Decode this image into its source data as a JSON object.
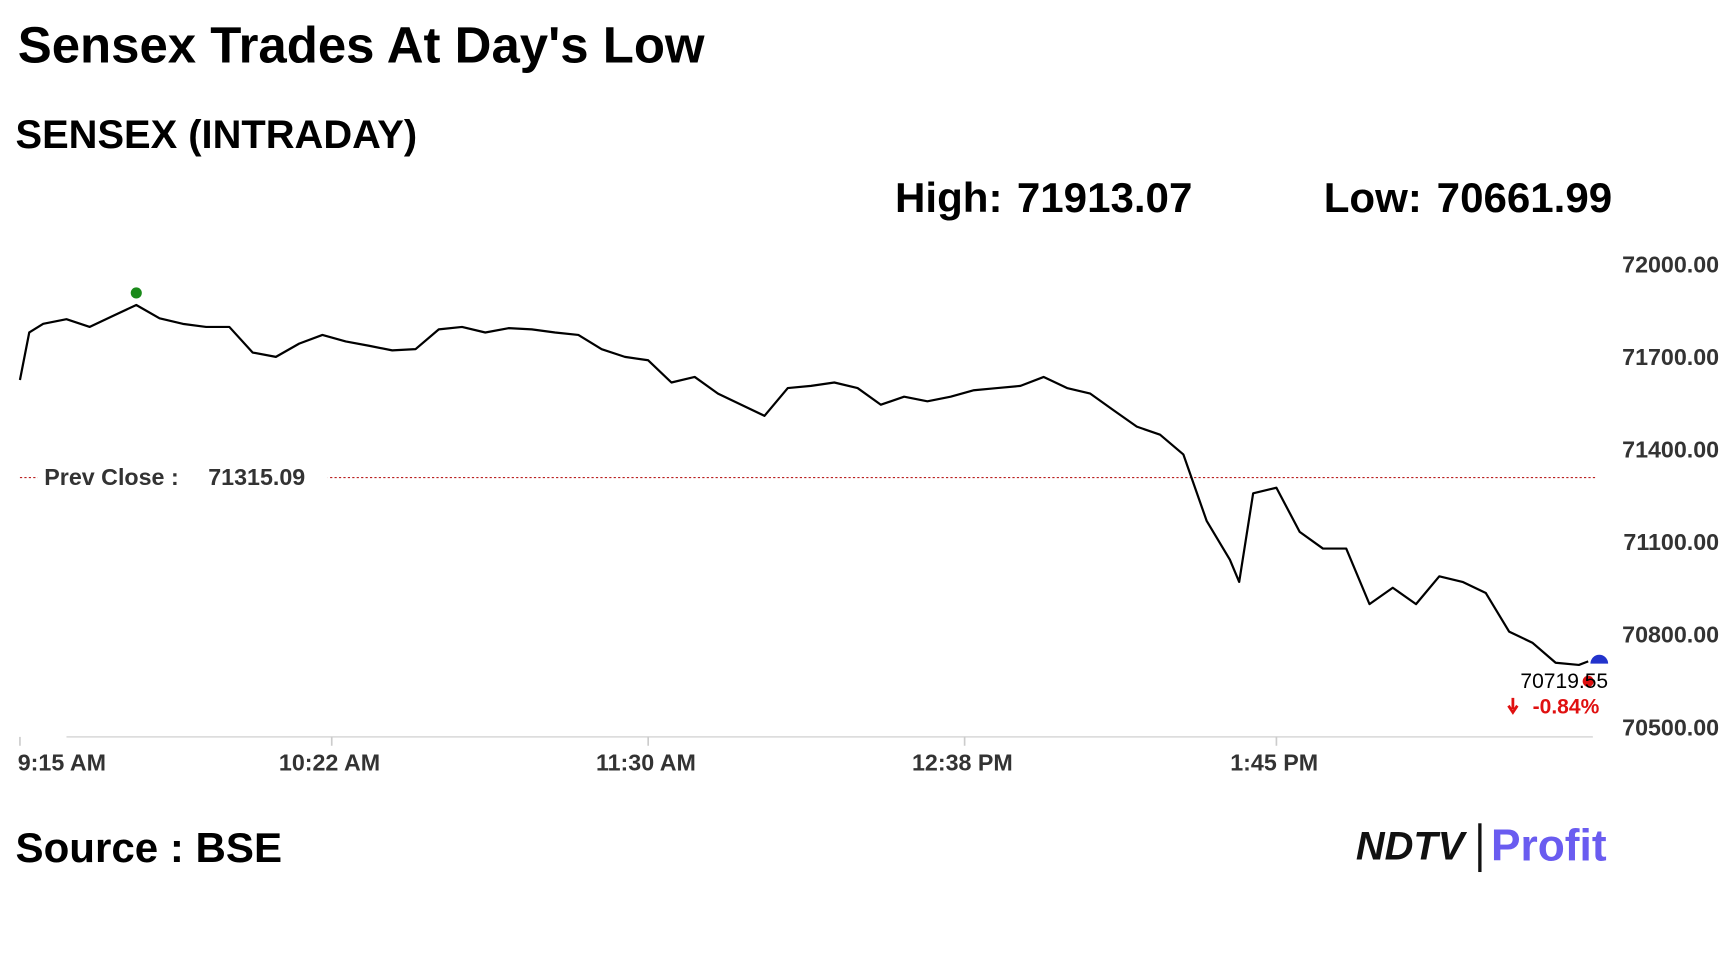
{
  "chart_data": {
    "type": "line",
    "title": "Sensex Trades At Day's Low",
    "subtitle": "SENSEX (INTRADAY)",
    "high": {
      "label": "High:",
      "value": 71913.07
    },
    "low": {
      "label": "Low:",
      "value": 70661.99
    },
    "prev_close": {
      "label": "Prev Close :",
      "value": 71315.09
    },
    "last_value": 70719.55,
    "change_label": "-0.84%",
    "source": "Source : BSE",
    "logo": {
      "brand": "NDTV",
      "product": "Profit"
    },
    "x": [
      "9:15 AM",
      "9:17 AM",
      "9:20 AM",
      "9:25 AM",
      "9:30 AM",
      "9:35 AM",
      "9:40 AM",
      "9:45 AM",
      "9:50 AM",
      "9:55 AM",
      "10:00 AM",
      "10:05 AM",
      "10:10 AM",
      "10:15 AM",
      "10:20 AM",
      "10:25 AM",
      "10:30 AM",
      "10:35 AM",
      "10:40 AM",
      "10:45 AM",
      "10:50 AM",
      "10:55 AM",
      "11:00 AM",
      "11:05 AM",
      "11:10 AM",
      "11:15 AM",
      "11:20 AM",
      "11:25 AM",
      "11:30 AM",
      "11:35 AM",
      "11:40 AM",
      "11:45 AM",
      "11:50 AM",
      "11:55 AM",
      "12:00 PM",
      "12:05 PM",
      "12:10 PM",
      "12:15 PM",
      "12:20 PM",
      "12:25 PM",
      "12:30 PM",
      "12:35 PM",
      "12:40 PM",
      "12:45 PM",
      "12:50 PM",
      "12:55 PM",
      "1:00 PM",
      "1:05 PM",
      "1:10 PM",
      "1:15 PM",
      "1:20 PM",
      "1:25 PM",
      "1:30 PM",
      "1:35 PM",
      "1:37 PM",
      "1:40 PM",
      "1:45 PM",
      "1:50 PM",
      "1:55 PM",
      "2:00 PM",
      "2:05 PM",
      "2:10 PM",
      "2:15 PM",
      "2:20 PM",
      "2:25 PM",
      "2:30 PM",
      "2:35 PM",
      "2:40 PM",
      "2:45 PM",
      "2:50 PM",
      "2:52 PM"
    ],
    "series": [
      {
        "name": "SENSEX",
        "color": "#000000",
        "values": [
          71631,
          71785,
          71813,
          71828,
          71803,
          71839,
          71874,
          71831,
          71813,
          71803,
          71803,
          71720,
          71706,
          71749,
          71777,
          71756,
          71742,
          71727,
          71731,
          71795,
          71803,
          71785,
          71799,
          71795,
          71785,
          71777,
          71731,
          71706,
          71695,
          71623,
          71641,
          71587,
          71551,
          71515,
          71605,
          71612,
          71623,
          71605,
          71551,
          71577,
          71562,
          71577,
          71598,
          71605,
          71612,
          71641,
          71605,
          71587,
          71533,
          71480,
          71454,
          71390,
          71175,
          71049,
          70977,
          71264,
          71282,
          71139,
          71085,
          71085,
          70905,
          70958,
          70905,
          70995,
          70977,
          70941,
          70816,
          70780,
          70715,
          70708,
          70719.55
        ]
      }
    ],
    "xlim": [
      "9:15 AM",
      "2:53 PM"
    ],
    "xticks": [
      "9:15 AM",
      "10:22 AM",
      "11:30 AM",
      "12:38 PM",
      "1:45 PM"
    ],
    "ylim": [
      70500,
      72000
    ],
    "yticks": [
      {
        "value": 70500,
        "label": "70500.00"
      },
      {
        "value": 70800,
        "label": "70800.00"
      },
      {
        "value": 71100,
        "label": "71100.00"
      },
      {
        "value": 71400,
        "label": "71400.00"
      },
      {
        "value": 71700,
        "label": "71700.00"
      },
      {
        "value": 72000,
        "label": "72000.00"
      }
    ]
  }
}
